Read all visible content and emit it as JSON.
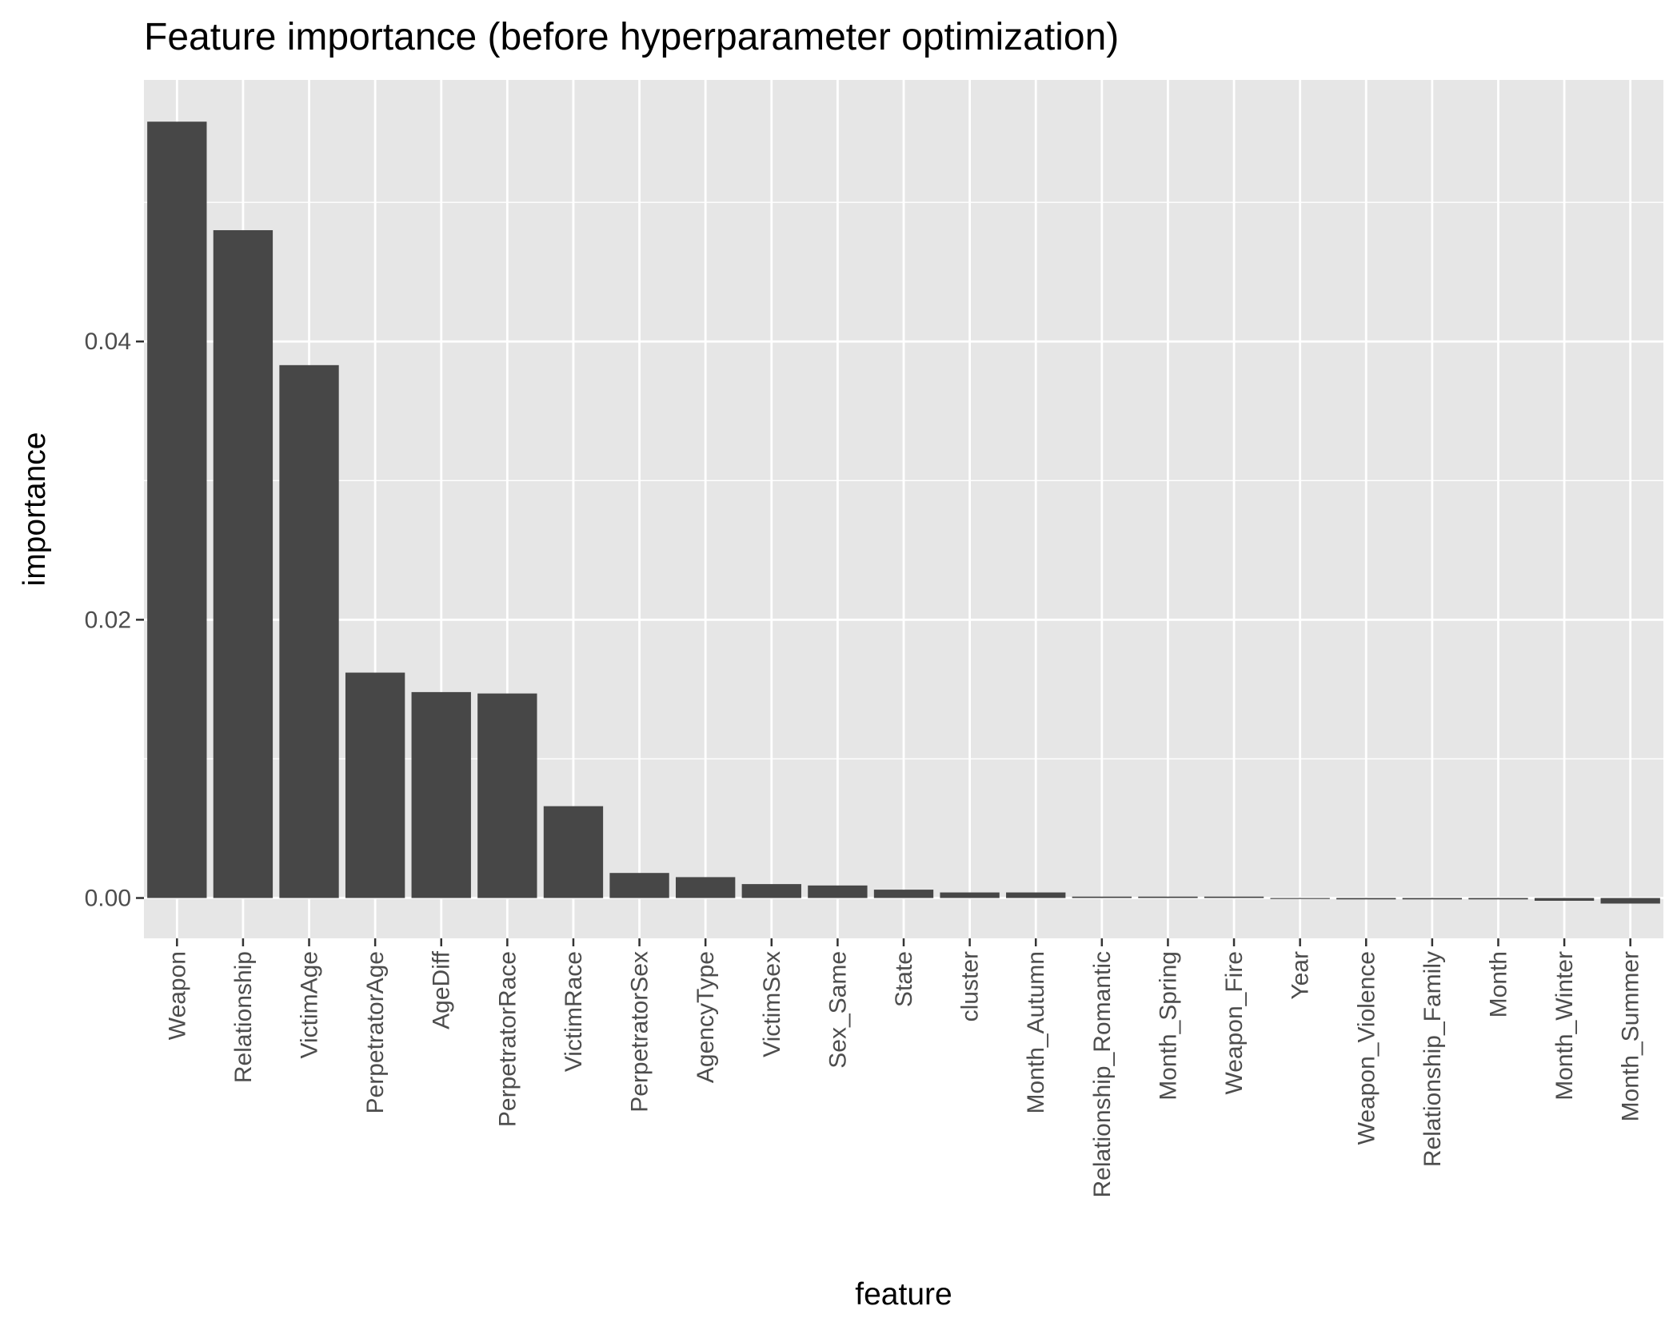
{
  "chart_data": {
    "type": "bar",
    "title": "Feature importance (before hyperparameter optimization)",
    "xlabel": "feature",
    "ylabel": "importance",
    "categories": [
      "Weapon",
      "Relationship",
      "VictimAge",
      "PerpetratorAge",
      "AgeDiff",
      "PerpetratorRace",
      "VictimRace",
      "PerpetratorSex",
      "AgencyType",
      "VictimSex",
      "Sex_Same",
      "State",
      "cluster",
      "Month_Autumn",
      "Relationship_Romantic",
      "Month_Spring",
      "Weapon_Fire",
      "Year",
      "Weapon_Violence",
      "Relationship_Family",
      "Month",
      "Month_Winter",
      "Month_Summer"
    ],
    "values": [
      0.0558,
      0.048,
      0.0383,
      0.0162,
      0.0148,
      0.0147,
      0.0066,
      0.0018,
      0.0015,
      0.001,
      0.0009,
      0.0006,
      0.0004,
      0.0004,
      0.0001,
      0.0001,
      0.0001,
      0.0,
      -0.0001,
      -0.0001,
      -0.0001,
      -0.0002,
      -0.0004
    ],
    "yticks": [
      0.0,
      0.02,
      0.04
    ],
    "ytick_labels": [
      "0.00",
      "0.02",
      "0.04"
    ],
    "ylim": [
      -0.0029,
      0.0588
    ],
    "grid": true,
    "legend": "none",
    "colors": {
      "bar": "#474747",
      "panel": "#e6e6e6",
      "grid_major": "#ffffff",
      "text": "#000000",
      "tick_text": "#4d4d4d",
      "tick_mark": "#333333"
    }
  }
}
